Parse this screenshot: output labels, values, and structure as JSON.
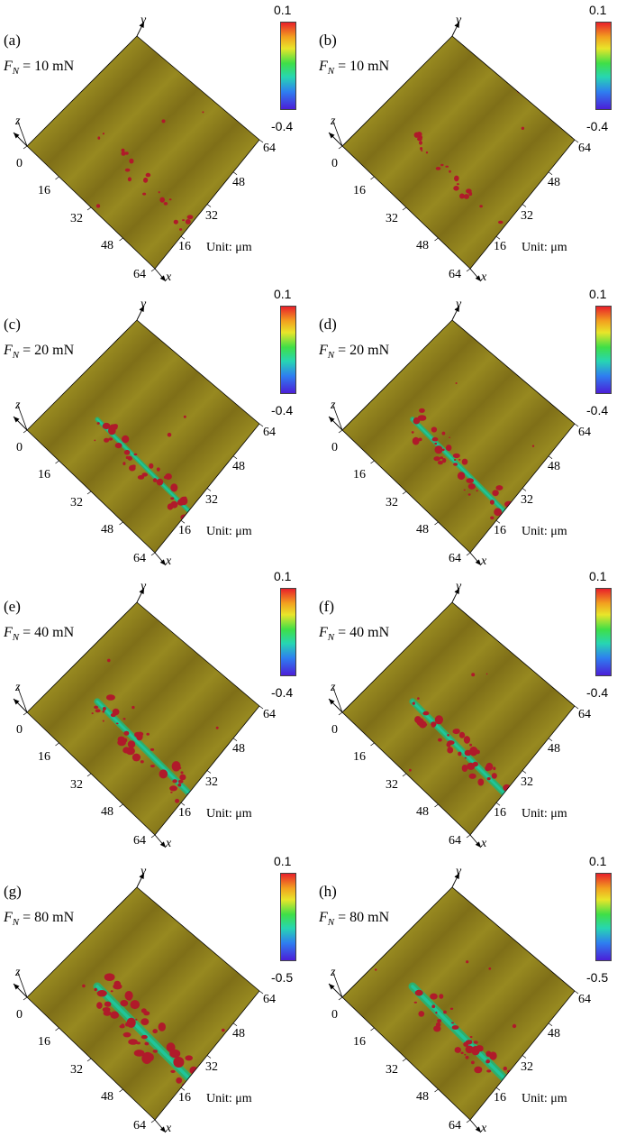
{
  "figure": {
    "unit_text": "Unit: μm",
    "axis_names": {
      "x": "x",
      "y": "y",
      "z": "z"
    },
    "x_ticks": [
      "0",
      "16",
      "32",
      "48",
      "64"
    ],
    "y_ticks": [
      "16",
      "32",
      "48",
      "64"
    ],
    "surface_color": "#8a7a1a",
    "scratch_color": "#2fae6a",
    "wear_debris_color": "#b01a2a",
    "panels": [
      {
        "label": "(a)",
        "force_symbol": "F",
        "force_sub": "N",
        "force_value": "= 10 mN",
        "cbar_max": "0.1",
        "cbar_min": "-0.4",
        "scratch_severity": 0.0,
        "debris_amount": 0.25
      },
      {
        "label": "(b)",
        "force_symbol": "F",
        "force_sub": "N",
        "force_value": "= 10 mN",
        "cbar_max": "0.1",
        "cbar_min": "-0.4",
        "scratch_severity": 0.0,
        "debris_amount": 0.25
      },
      {
        "label": "(c)",
        "force_symbol": "F",
        "force_sub": "N",
        "force_value": "= 20 mN",
        "cbar_max": "0.1",
        "cbar_min": "-0.4",
        "scratch_severity": 0.35,
        "debris_amount": 0.55
      },
      {
        "label": "(d)",
        "force_symbol": "F",
        "force_sub": "N",
        "force_value": "= 20 mN",
        "cbar_max": "0.1",
        "cbar_min": "-0.4",
        "scratch_severity": 0.45,
        "debris_amount": 0.6
      },
      {
        "label": "(e)",
        "force_symbol": "F",
        "force_sub": "N",
        "force_value": "= 40 mN",
        "cbar_max": "0.1",
        "cbar_min": "-0.4",
        "scratch_severity": 0.7,
        "debris_amount": 0.65
      },
      {
        "label": "(f)",
        "force_symbol": "F",
        "force_sub": "N",
        "force_value": "= 40 mN",
        "cbar_max": "0.1",
        "cbar_min": "-0.4",
        "scratch_severity": 0.7,
        "debris_amount": 0.6
      },
      {
        "label": "(g)",
        "force_symbol": "F",
        "force_sub": "N",
        "force_value": "= 80 mN",
        "cbar_max": "0.1",
        "cbar_min": "-0.5",
        "scratch_severity": 1.0,
        "debris_amount": 0.9
      },
      {
        "label": "(h)",
        "force_symbol": "F",
        "force_sub": "N",
        "force_value": "= 80 mN",
        "cbar_max": "0.1",
        "cbar_min": "-0.5",
        "scratch_severity": 1.0,
        "debris_amount": 0.6
      }
    ]
  }
}
